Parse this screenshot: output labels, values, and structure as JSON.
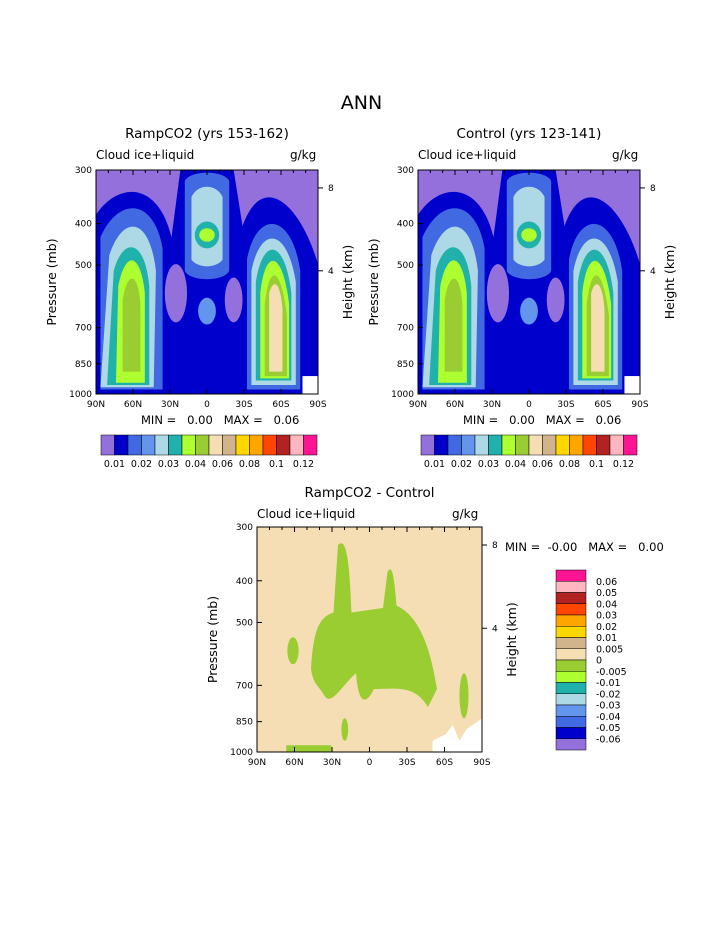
{
  "page": {
    "title": "ANN"
  },
  "panels": [
    {
      "title": "RampCO2 (yrs 153-162)",
      "variable": "Cloud ice+liquid",
      "units": "g/kg",
      "minmax": "MIN =   0.00   MAX =   0.06"
    },
    {
      "title": "Control (yrs 123-141)",
      "variable": "Cloud ice+liquid",
      "units": "g/kg",
      "minmax": "MIN =   0.00   MAX =   0.06"
    },
    {
      "title": "RampCO2 - Control",
      "variable": "Cloud ice+liquid",
      "units": "g/kg",
      "minmax": "MIN =  -0.00   MAX =   0.00"
    }
  ],
  "axes": {
    "y_left_label": "Pressure (mb)",
    "y_right_label": "Height (km)",
    "pressure_ticks": [
      "300",
      "400",
      "500",
      "700",
      "850",
      "1000"
    ],
    "height_ticks": [
      "8",
      "4"
    ],
    "lat_ticks": [
      "90N",
      "60N",
      "30N",
      "0",
      "30S",
      "60S",
      "90S"
    ]
  },
  "colorbar_top": {
    "labels": [
      "0.01",
      "0.02",
      "0.03",
      "0.04",
      "0.06",
      "0.08",
      "0.1",
      "0.12"
    ],
    "colors": [
      "#9370DB",
      "#0000CD",
      "#4169E1",
      "#6495ED",
      "#ADD8E6",
      "#20B2AA",
      "#ADFF2F",
      "#9ACD32",
      "#F5DEB3",
      "#D2B48C",
      "#FFD700",
      "#FFA500",
      "#FF4500",
      "#B22222",
      "#FFB6C1",
      "#FF1493"
    ]
  },
  "colorbar_diff": {
    "labels": [
      "0.06",
      "0.05",
      "0.04",
      "0.03",
      "0.02",
      "0.01",
      "0.005",
      "0",
      "-0.005",
      "-0.01",
      "-0.02",
      "-0.03",
      "-0.04",
      "-0.05",
      "-0.06"
    ],
    "colors": [
      "#FF1493",
      "#FFB6C1",
      "#B22222",
      "#FF4500",
      "#FFA500",
      "#FFD700",
      "#D2B48C",
      "#F5DEB3",
      "#9ACD32",
      "#ADFF2F",
      "#20B2AA",
      "#ADD8E6",
      "#6495ED",
      "#4169E1",
      "#0000CD",
      "#9370DB"
    ]
  },
  "chart_data": [
    {
      "type": "heatmap",
      "title": "RampCO2 (yrs 153-162)",
      "x_ticks": [
        "90N",
        "60N",
        "30N",
        "0",
        "30S",
        "60S",
        "90S"
      ],
      "y_ticks": [
        300,
        400,
        500,
        700,
        850,
        1000
      ],
      "xlabel": "",
      "ylabel": "Pressure (mb)",
      "y2label": "Height (km)",
      "zlim": [
        0.0,
        0.06
      ],
      "units": "g/kg"
    },
    {
      "type": "heatmap",
      "title": "Control (yrs 123-141)",
      "x_ticks": [
        "90N",
        "60N",
        "30N",
        "0",
        "30S",
        "60S",
        "90S"
      ],
      "y_ticks": [
        300,
        400,
        500,
        700,
        850,
        1000
      ],
      "xlabel": "",
      "ylabel": "Pressure (mb)",
      "y2label": "Height (km)",
      "zlim": [
        0.0,
        0.06
      ],
      "units": "g/kg"
    },
    {
      "type": "heatmap",
      "title": "RampCO2 - Control",
      "x_ticks": [
        "90N",
        "60N",
        "30N",
        "0",
        "30S",
        "60S",
        "90S"
      ],
      "y_ticks": [
        300,
        400,
        500,
        700,
        850,
        1000
      ],
      "xlabel": "",
      "ylabel": "Pressure (mb)",
      "y2label": "Height (km)",
      "zlim": [
        -0.0,
        0.0
      ],
      "units": "g/kg"
    }
  ]
}
